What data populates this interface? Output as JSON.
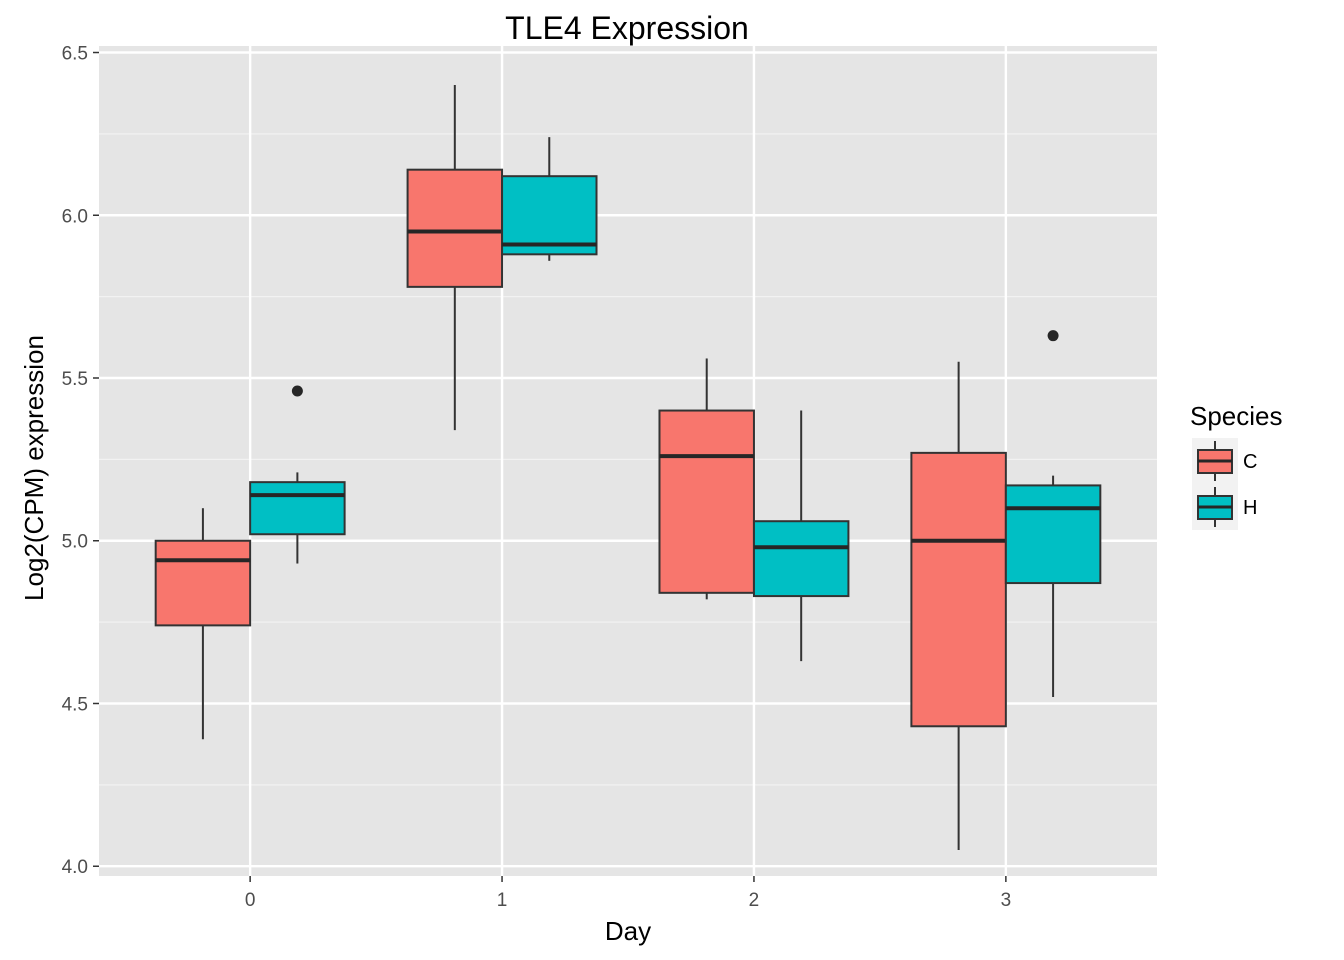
{
  "chart_data": {
    "type": "boxplot",
    "title": "TLE4 Expression",
    "xlabel": "Day",
    "ylabel": "Log2(CPM) expression",
    "categories": [
      "0",
      "1",
      "2",
      "3"
    ],
    "ylim": [
      3.97,
      6.52
    ],
    "yticks": [
      "4.0",
      "4.5",
      "5.0",
      "5.5",
      "6.0",
      "6.5"
    ],
    "grid": true,
    "legend": {
      "title": "Species",
      "position": "right"
    },
    "series": [
      {
        "name": "C",
        "color": "#F8766D",
        "boxes": [
          {
            "category": "0",
            "whisker_low": 4.39,
            "q1": 4.74,
            "median": 4.94,
            "q3": 5.0,
            "whisker_high": 5.1,
            "outliers": []
          },
          {
            "category": "1",
            "whisker_low": 5.34,
            "q1": 5.78,
            "median": 5.95,
            "q3": 6.14,
            "whisker_high": 6.4,
            "outliers": []
          },
          {
            "category": "2",
            "whisker_low": 4.82,
            "q1": 4.84,
            "median": 5.26,
            "q3": 5.4,
            "whisker_high": 5.56,
            "outliers": []
          },
          {
            "category": "3",
            "whisker_low": 4.05,
            "q1": 4.43,
            "median": 5.0,
            "q3": 5.27,
            "whisker_high": 5.55,
            "outliers": []
          }
        ]
      },
      {
        "name": "H",
        "color": "#00BFC4",
        "boxes": [
          {
            "category": "0",
            "whisker_low": 4.93,
            "q1": 5.02,
            "median": 5.14,
            "q3": 5.18,
            "whisker_high": 5.21,
            "outliers": [
              5.46
            ]
          },
          {
            "category": "1",
            "whisker_low": 5.86,
            "q1": 5.88,
            "median": 5.91,
            "q3": 6.12,
            "whisker_high": 6.24,
            "outliers": []
          },
          {
            "category": "2",
            "whisker_low": 4.63,
            "q1": 4.83,
            "median": 4.98,
            "q3": 5.06,
            "whisker_high": 5.4,
            "outliers": []
          },
          {
            "category": "3",
            "whisker_low": 4.52,
            "q1": 4.87,
            "median": 5.1,
            "q3": 5.17,
            "whisker_high": 5.2,
            "outliers": [
              5.63
            ]
          }
        ]
      }
    ]
  }
}
